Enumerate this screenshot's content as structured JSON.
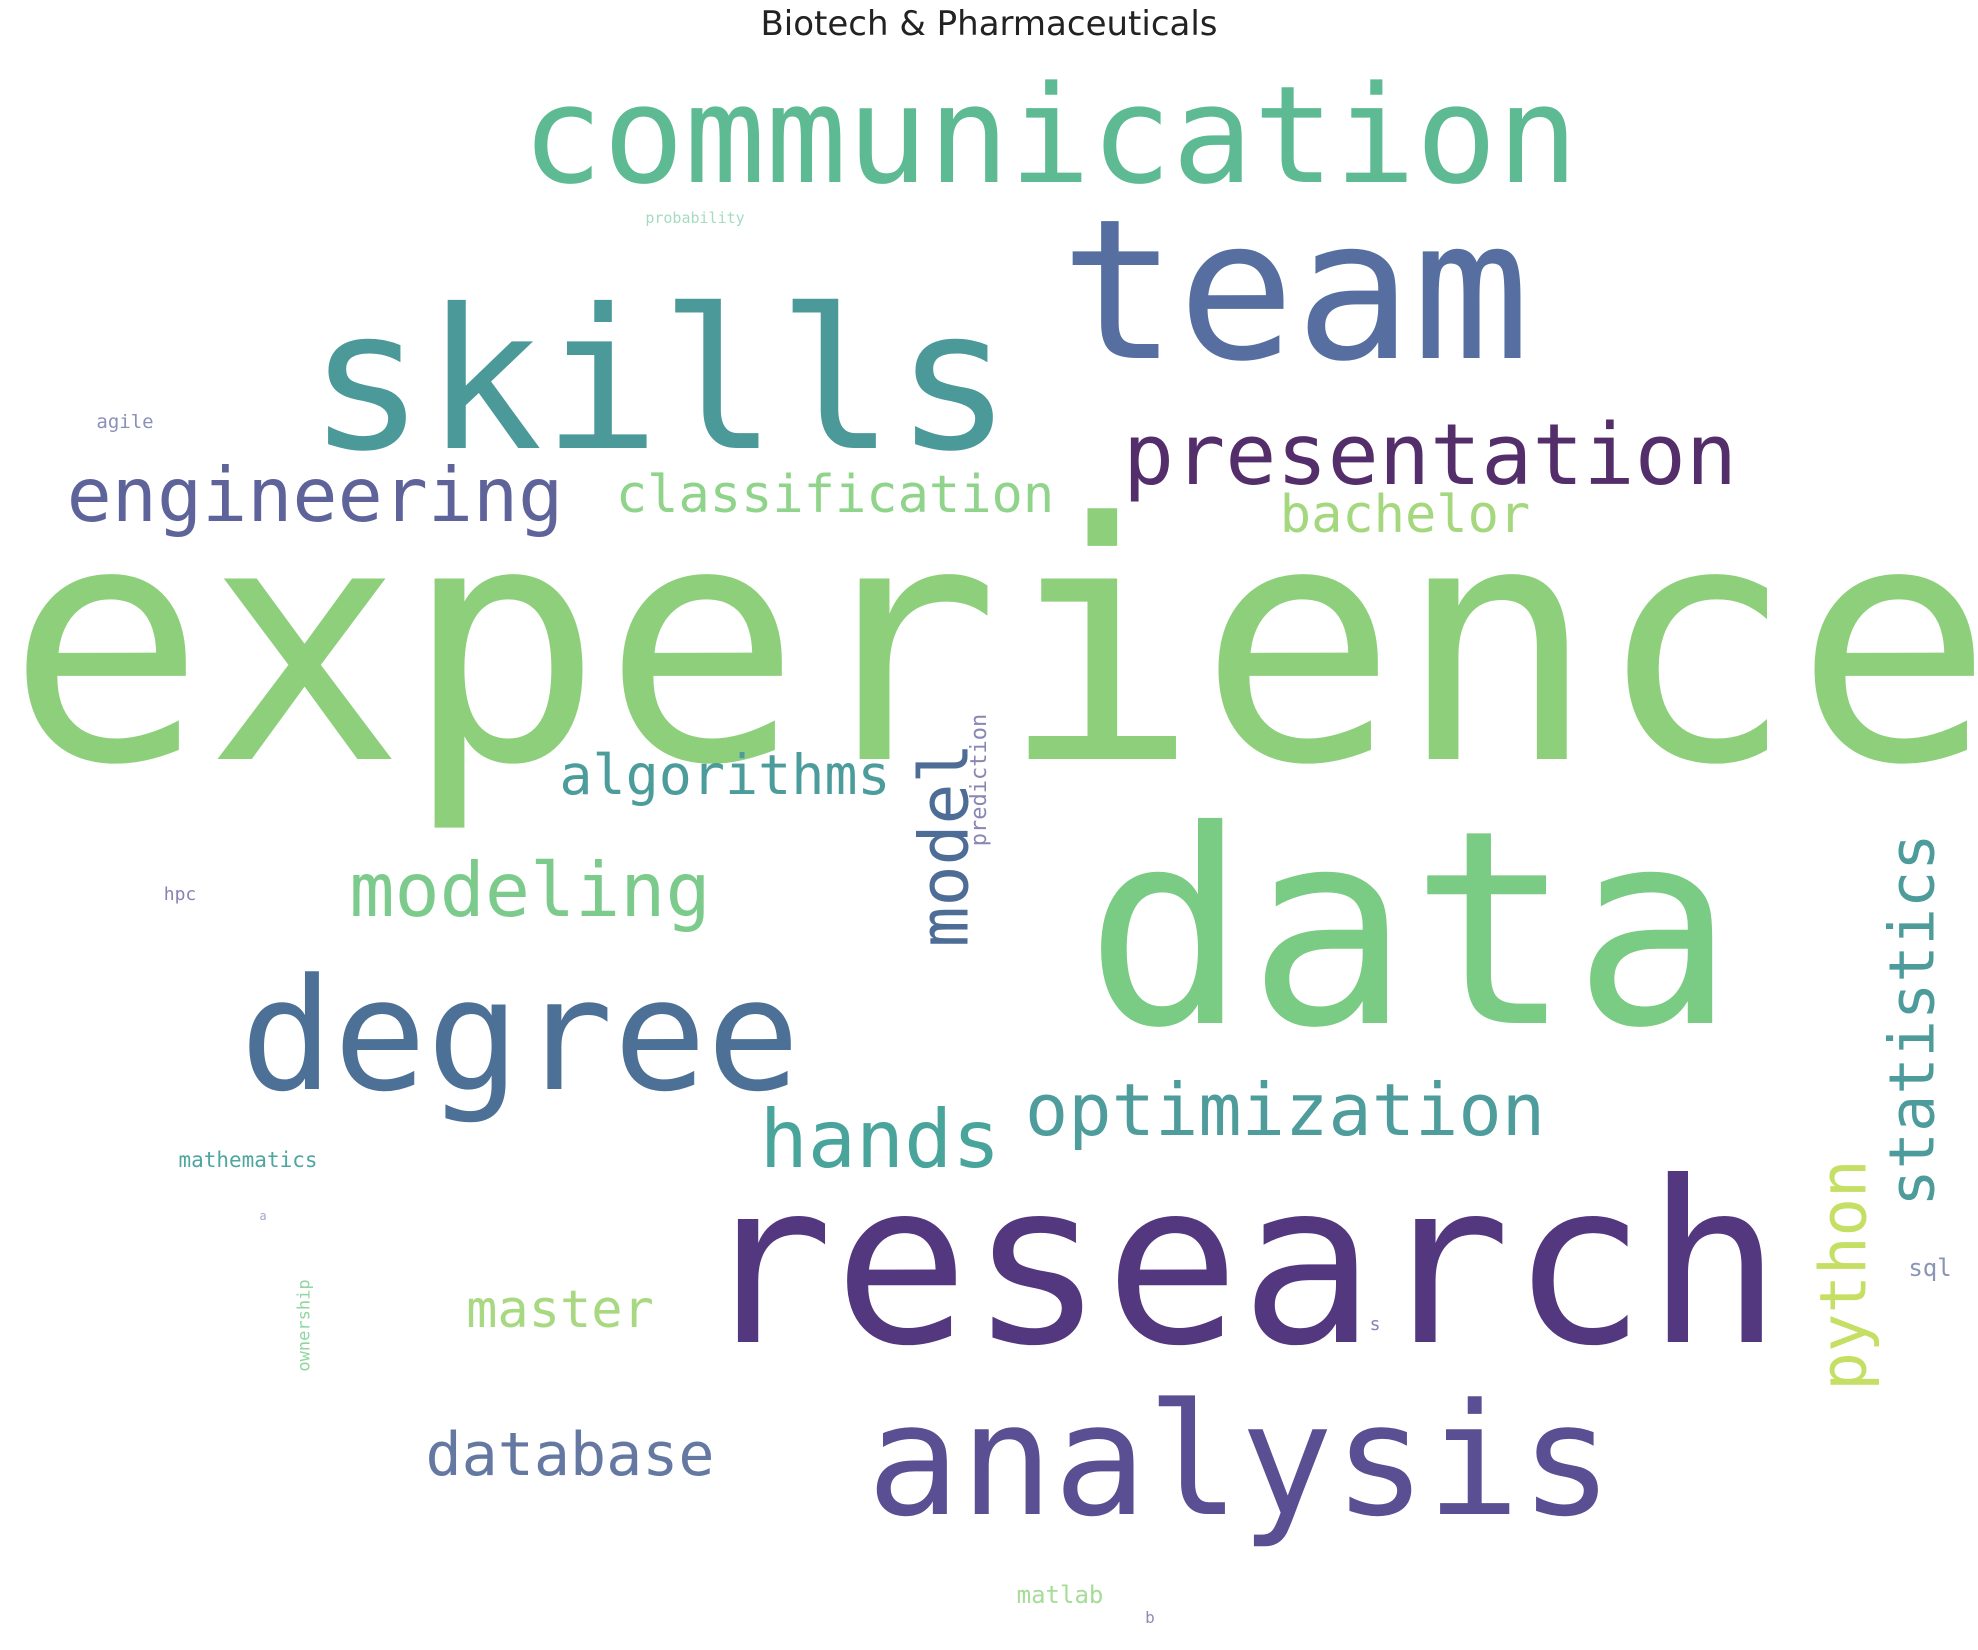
{
  "title": "Biotech & Pharmaceuticals",
  "words": [
    {
      "text": "experience",
      "color": "#8dcf7a",
      "vertical": false
    },
    {
      "text": "data",
      "color": "#7acb83",
      "vertical": false
    },
    {
      "text": "research",
      "color": "#54387f",
      "vertical": false
    },
    {
      "text": "team",
      "color": "#566fa0",
      "vertical": false
    },
    {
      "text": "skills",
      "color": "#4c999a",
      "vertical": false
    },
    {
      "text": "communication",
      "color": "#5dba93",
      "vertical": false
    },
    {
      "text": "analysis",
      "color": "#5a4f92",
      "vertical": false
    },
    {
      "text": "degree",
      "color": "#4d7096",
      "vertical": false
    },
    {
      "text": "presentation",
      "color": "#542e6a",
      "vertical": false
    },
    {
      "text": "engineering",
      "color": "#5e649a",
      "vertical": false
    },
    {
      "text": "classification",
      "color": "#8fd48a",
      "vertical": false
    },
    {
      "text": "bachelor",
      "color": "#a5d87e",
      "vertical": false
    },
    {
      "text": "algorithms",
      "color": "#4d9c9c",
      "vertical": false
    },
    {
      "text": "model",
      "color": "#4e6d96",
      "vertical": true
    },
    {
      "text": "prediction",
      "color": "#8a86b4",
      "vertical": true
    },
    {
      "text": "modeling",
      "color": "#7ccb8c",
      "vertical": false
    },
    {
      "text": "statistics",
      "color": "#4e9b9c",
      "vertical": true
    },
    {
      "text": "optimization",
      "color": "#4f9c9c",
      "vertical": false
    },
    {
      "text": "hands",
      "color": "#49a59c",
      "vertical": false
    },
    {
      "text": "python",
      "color": "#c4df63",
      "vertical": true
    },
    {
      "text": "master",
      "color": "#a8d982",
      "vertical": false
    },
    {
      "text": "database",
      "color": "#6478a2",
      "vertical": false
    },
    {
      "text": "mathematics",
      "color": "#4fa6a0",
      "vertical": false
    },
    {
      "text": "ownership",
      "color": "#8fd6a0",
      "vertical": true
    },
    {
      "text": "probability",
      "color": "#a6dac1",
      "vertical": false
    },
    {
      "text": "agile",
      "color": "#8a91b8",
      "vertical": false
    },
    {
      "text": "hpc",
      "color": "#8a80b3",
      "vertical": false
    },
    {
      "text": "sql",
      "color": "#8a94b6",
      "vertical": false
    },
    {
      "text": "s",
      "color": "#8a82b2",
      "vertical": false
    },
    {
      "text": "matlab",
      "color": "#a5dc97",
      "vertical": false
    },
    {
      "text": "b",
      "color": "#8a8db5",
      "vertical": false
    },
    {
      "text": "a",
      "color": "#a0a6c8",
      "vertical": false
    }
  ]
}
